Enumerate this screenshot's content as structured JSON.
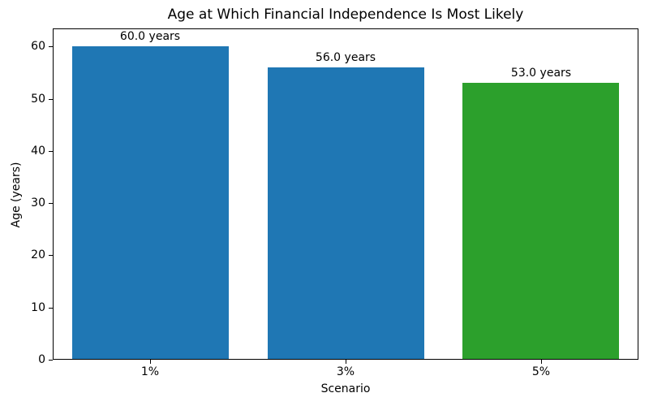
{
  "figure": {
    "background": "#ffffff",
    "frame_color": "#000000"
  },
  "chart_data": {
    "type": "bar",
    "title": "Age at Which Financial Independence Is Most Likely",
    "xlabel": "Scenario",
    "ylabel": "Age (years)",
    "categories": [
      "1%",
      "3%",
      "5%"
    ],
    "values": [
      60.0,
      56.0,
      53.0
    ],
    "bar_labels": [
      "60.0 years",
      "56.0 years",
      "53.0 years"
    ],
    "bar_colors": [
      "#1f77b4",
      "#1f77b4",
      "#2ca02c"
    ],
    "yticks": [
      0,
      10,
      20,
      30,
      40,
      50,
      60
    ],
    "ylim": [
      0,
      63.5
    ],
    "grid": false,
    "legend": "none"
  }
}
